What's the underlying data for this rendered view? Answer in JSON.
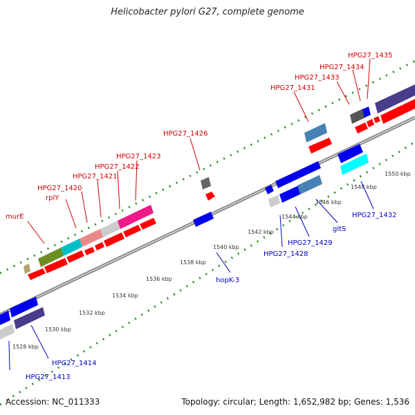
{
  "title": "Helicobacter pylori G27, complete genome",
  "footer": {
    "accession": "Accession: NC_011333",
    "summary": "Topology: circular; Length: 1,652,982 bp; Genes: 1,536"
  },
  "ticks": [
    "1528 kbp",
    "1530 kbp",
    "1532 kbp",
    "1534 kbp",
    "1536 kbp",
    "1538 kbp",
    "1540 kbp",
    "1542 kbp",
    "1544 kbp",
    "1546 kbp",
    "1548 kbp",
    "1550 kbp"
  ],
  "labels_top": [
    "murE",
    "rplY",
    "HPG27_1420",
    "HPG27_1421",
    "HPG27_1422",
    "HPG27_1423",
    "HPG27_1426",
    "HPG27_1431",
    "HPG27_1433",
    "HPG27_1434",
    "HPG27_1435"
  ],
  "labels_bottom": [
    "HPG27_1413",
    "HPG27_1414",
    "hopK-3",
    "HPG27_1428",
    "HPG27_1429",
    "gltS",
    "HPG27_1432"
  ],
  "colors": {
    "red_gene": "#ff0000",
    "blue_gene": "#0000ee",
    "backbone": "#999999",
    "label_red": "#cc0000",
    "label_blue": "#0000bb",
    "tick_green": "#2a8a2a"
  }
}
